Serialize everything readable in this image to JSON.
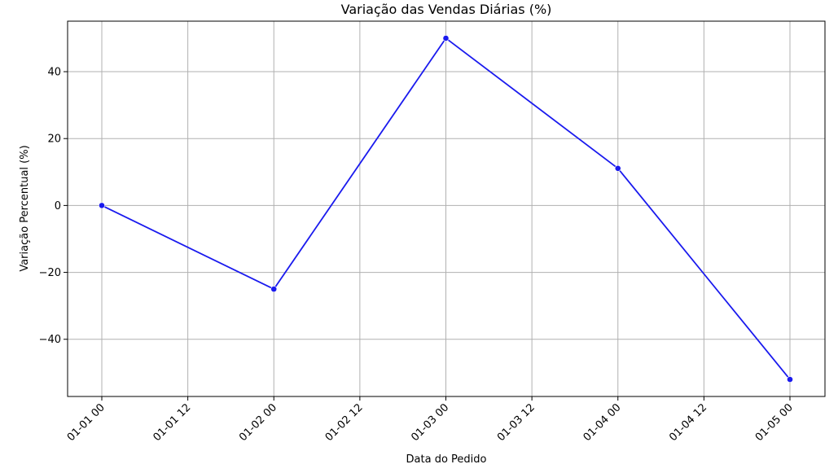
{
  "chart_data": {
    "type": "line",
    "title": "Variação das Vendas Diárias (%)",
    "xlabel": "Data do Pedido",
    "ylabel": "Variação Percentual (%)",
    "x": [
      "2024-01-01 00:00",
      "2024-01-02 00:00",
      "2024-01-03 00:00",
      "2024-01-04 00:00",
      "2024-01-05 00:00"
    ],
    "series": [
      {
        "values": [
          0,
          -25,
          50,
          11.1,
          -52
        ]
      }
    ],
    "x_tick_labels": [
      "01-01 00",
      "01-01 12",
      "01-02 00",
      "01-02 12",
      "01-03 00",
      "01-03 12",
      "01-04 00",
      "01-04 12",
      "01-05 00"
    ],
    "y_ticks": [
      -40,
      -20,
      0,
      20,
      40
    ],
    "y_tick_labels": [
      "−40",
      "−20",
      "0",
      "20",
      "40"
    ],
    "ylim": [
      -57.1,
      55.1
    ],
    "grid": true,
    "line_color": "#1a1aee",
    "grid_color": "#b0b0b0"
  }
}
